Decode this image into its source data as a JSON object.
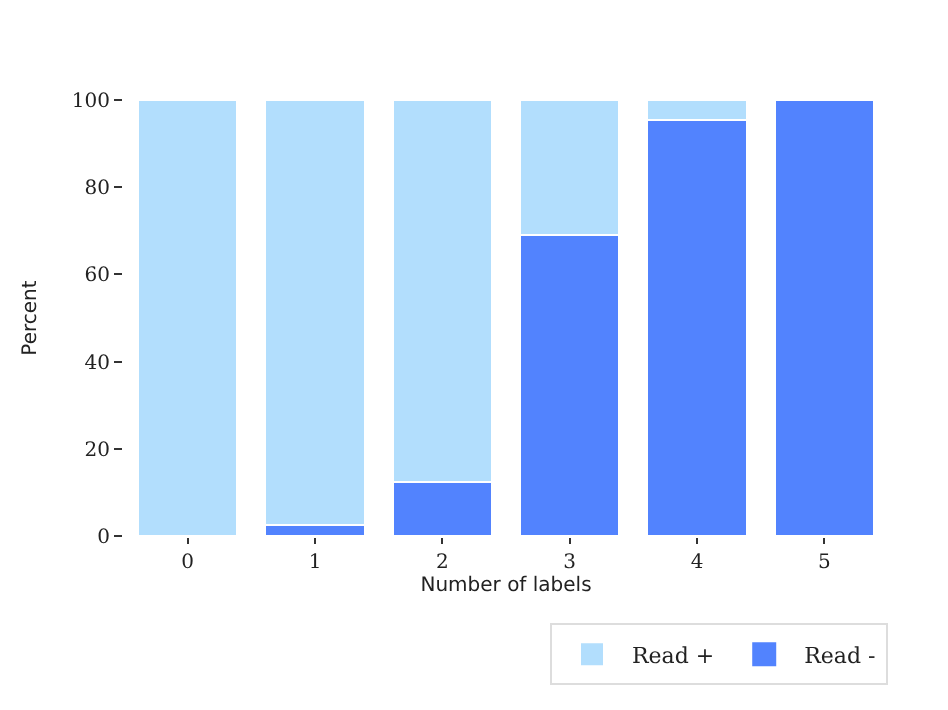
{
  "chart_data": {
    "type": "bar",
    "stacked": true,
    "xlabel": "Number of labels",
    "ylabel": "Percent",
    "categories": [
      "0",
      "1",
      "2",
      "3",
      "4",
      "5"
    ],
    "series": [
      {
        "name": "Read -",
        "color": "#5283fe",
        "values": [
          0,
          2.5,
          12.5,
          69,
          95.5,
          100
        ]
      },
      {
        "name": "Read +",
        "color": "#b2defd",
        "values": [
          100,
          97.5,
          87.5,
          31,
          4.5,
          0
        ]
      }
    ],
    "ylim": [
      0,
      100
    ],
    "yticks": [
      0,
      20,
      40,
      60,
      80,
      100
    ],
    "legend": "bottom right"
  }
}
